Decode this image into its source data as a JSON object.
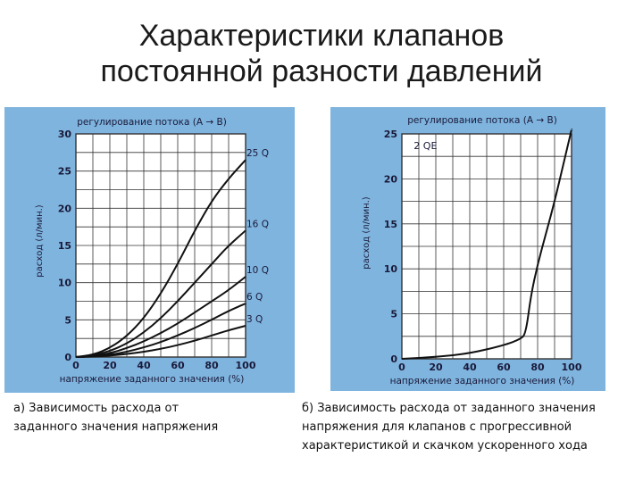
{
  "title": {
    "line1": "Характеристики клапанов",
    "line2": "постоянной разности давлений"
  },
  "captions": {
    "a_line1": "а) Зависимость расхода от",
    "a_line2": "заданного значения напряжения",
    "b_line1": "б) Зависимость расхода от заданного значения",
    "b_line2": "напряжения для клапанов с прогрессивной",
    "b_line3": "характеристикой и скачком ускоренного хода"
  },
  "colors": {
    "panel_bg": "#7fb4de",
    "plot_bg": "#ffffff",
    "grid": "#333333",
    "curve": "#111111"
  },
  "chart_data": [
    {
      "type": "line",
      "title": "регулирование потока (А → В)",
      "xlabel": "напряжение заданного значения (%)",
      "ylabel": "расход (л/мин.)",
      "xlim": [
        0,
        100
      ],
      "ylim": [
        0,
        30
      ],
      "xticks": [
        0,
        20,
        40,
        60,
        80,
        100
      ],
      "yticks": [
        0,
        5,
        10,
        15,
        20,
        25,
        30
      ],
      "grid": true,
      "series": [
        {
          "name": "25 Q",
          "x": [
            0,
            10,
            20,
            30,
            40,
            50,
            60,
            70,
            80,
            90,
            100
          ],
          "y": [
            0,
            0.3,
            1.2,
            2.8,
            5.2,
            8.5,
            12.5,
            17,
            21,
            24,
            26.5
          ]
        },
        {
          "name": "16 Q",
          "x": [
            0,
            10,
            20,
            30,
            40,
            50,
            60,
            70,
            80,
            90,
            100
          ],
          "y": [
            0,
            0.2,
            0.8,
            1.8,
            3.3,
            5.2,
            7.5,
            10,
            12.5,
            15,
            17
          ]
        },
        {
          "name": "10 Q",
          "x": [
            0,
            10,
            20,
            30,
            40,
            50,
            60,
            70,
            80,
            90,
            100
          ],
          "y": [
            0,
            0.1,
            0.5,
            1.2,
            2.1,
            3.2,
            4.5,
            6,
            7.5,
            9,
            10.8
          ]
        },
        {
          "name": "6 Q",
          "x": [
            0,
            10,
            20,
            30,
            40,
            50,
            60,
            70,
            80,
            90,
            100
          ],
          "y": [
            0,
            0.1,
            0.3,
            0.7,
            1.3,
            2,
            2.9,
            3.9,
            5,
            6.2,
            7.2
          ]
        },
        {
          "name": "3 Q",
          "x": [
            0,
            10,
            20,
            30,
            40,
            50,
            60,
            70,
            80,
            90,
            100
          ],
          "y": [
            0,
            0.05,
            0.2,
            0.4,
            0.7,
            1.1,
            1.6,
            2.2,
            2.9,
            3.6,
            4.2
          ]
        }
      ]
    },
    {
      "type": "line",
      "title": "регулирование потока (А → В)",
      "xlabel": "напряжение заданного значения (%)",
      "ylabel": "расход (л/мин.)",
      "xlim": [
        0,
        100
      ],
      "ylim": [
        0,
        25
      ],
      "xticks": [
        0,
        20,
        40,
        60,
        80,
        100
      ],
      "yticks": [
        0,
        5,
        10,
        15,
        20,
        25
      ],
      "grid": true,
      "annotation": "2 QE",
      "series": [
        {
          "name": "",
          "x": [
            0,
            20,
            40,
            60,
            70,
            73,
            76,
            80,
            85,
            90,
            95,
            100
          ],
          "y": [
            0,
            0.2,
            0.6,
            1.5,
            2.2,
            2.8,
            7,
            10.5,
            14,
            17.5,
            21.5,
            25.5
          ]
        }
      ]
    }
  ]
}
